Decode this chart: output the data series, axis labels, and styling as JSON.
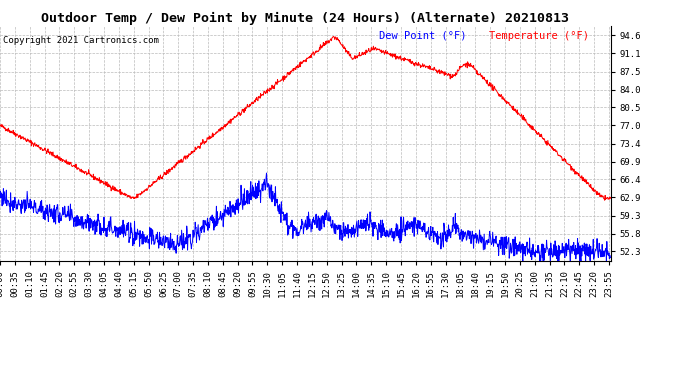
{
  "title": "Outdoor Temp / Dew Point by Minute (24 Hours) (Alternate) 20210813",
  "copyright": "Copyright 2021 Cartronics.com",
  "legend_dew": "Dew Point (°F)",
  "legend_temp": "Temperature (°F)",
  "yticks": [
    52.3,
    55.8,
    59.3,
    62.9,
    66.4,
    69.9,
    73.4,
    77.0,
    80.5,
    84.0,
    87.5,
    91.1,
    94.6
  ],
  "ylim": [
    50.5,
    96.4
  ],
  "temp_color": "red",
  "dew_color": "blue",
  "bg_color": "#ffffff",
  "grid_color": "#bbbbbb",
  "title_fontsize": 9.5,
  "tick_fontsize": 6.5,
  "copyright_fontsize": 6.5,
  "legend_fontsize": 7.5
}
